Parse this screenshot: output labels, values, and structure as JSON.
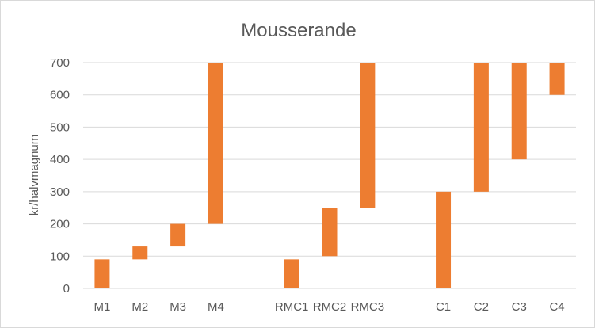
{
  "chart_data": {
    "type": "bar",
    "subtype": "floating-range",
    "title": "Mousserande",
    "xlabel": "",
    "ylabel": "kr/halvmagnum",
    "ylim": [
      0,
      700
    ],
    "yticks": [
      0,
      100,
      200,
      300,
      400,
      500,
      600,
      700
    ],
    "grid": true,
    "legend": "none",
    "colors": {
      "bar": "#ed7d31",
      "grid": "#d9d9d9",
      "text": "#595959"
    },
    "categories": [
      "M1",
      "M2",
      "M3",
      "M4",
      "",
      "RMC1",
      "RMC2",
      "RMC3",
      "",
      "C1",
      "C2",
      "C3",
      "C4"
    ],
    "ranges": [
      [
        0,
        90
      ],
      [
        90,
        130
      ],
      [
        130,
        200
      ],
      [
        200,
        700
      ],
      null,
      [
        0,
        90
      ],
      [
        100,
        250
      ],
      [
        250,
        700
      ],
      null,
      [
        0,
        300
      ],
      [
        300,
        700
      ],
      [
        400,
        700
      ],
      [
        600,
        700
      ]
    ]
  }
}
